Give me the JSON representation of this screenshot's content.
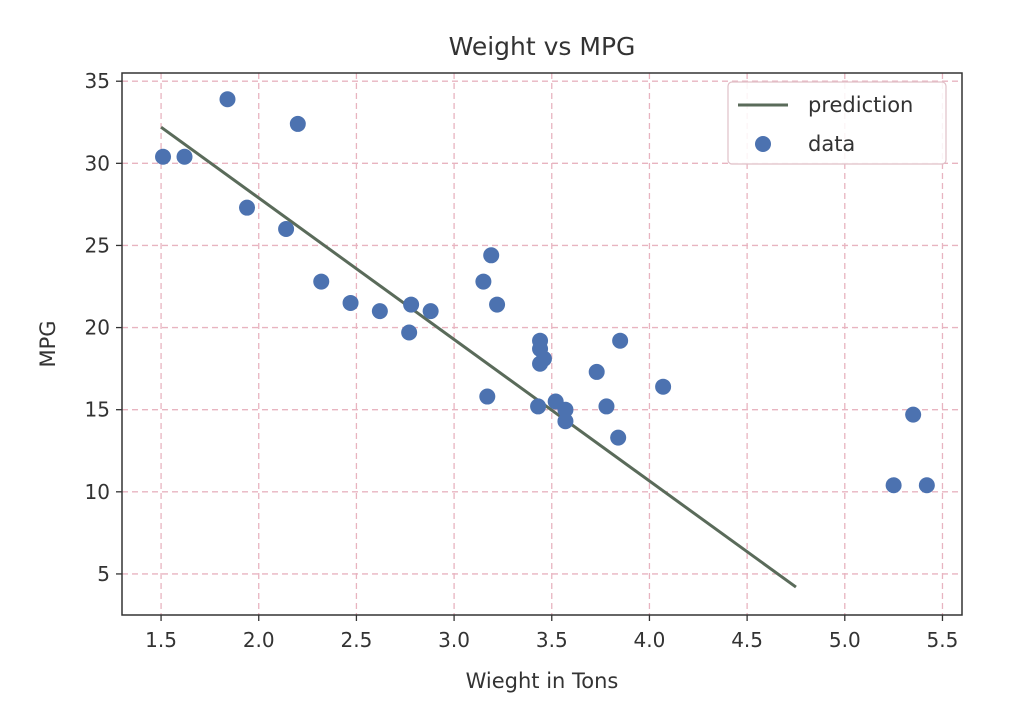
{
  "chart_data": {
    "type": "scatter",
    "title": "Weight vs MPG",
    "xlabel": "Wieght in Tons",
    "ylabel": "MPG",
    "xlim": [
      1.3,
      5.6
    ],
    "ylim": [
      2.5,
      35.5
    ],
    "xticks": [
      1.5,
      2.0,
      2.5,
      3.0,
      3.5,
      4.0,
      4.5,
      5.0,
      5.5
    ],
    "xtick_labels": [
      "1.5",
      "2.0",
      "2.5",
      "3.0",
      "3.5",
      "4.0",
      "4.5",
      "5.0",
      "5.5"
    ],
    "yticks": [
      5,
      10,
      15,
      20,
      25,
      30,
      35
    ],
    "ytick_labels": [
      "5",
      "10",
      "15",
      "20",
      "25",
      "30",
      "35"
    ],
    "grid": true,
    "legend_position": "top-right",
    "series": [
      {
        "name": "prediction",
        "kind": "line",
        "color": "#5a6b5a",
        "x": [
          1.5,
          4.75
        ],
        "y": [
          32.2,
          4.2
        ]
      },
      {
        "name": "data",
        "kind": "scatter",
        "color": "#4c72b0",
        "x": [
          1.51,
          1.62,
          1.84,
          1.94,
          2.14,
          2.2,
          2.32,
          2.47,
          2.62,
          2.77,
          2.78,
          2.88,
          3.15,
          3.17,
          3.19,
          3.22,
          3.43,
          3.44,
          3.44,
          3.44,
          3.46,
          3.52,
          3.57,
          3.57,
          3.73,
          3.78,
          3.84,
          3.85,
          4.07,
          5.25,
          5.35,
          5.42
        ],
        "y": [
          30.4,
          30.4,
          33.9,
          27.3,
          26.0,
          32.4,
          22.8,
          21.5,
          21.0,
          19.7,
          21.4,
          21.0,
          22.8,
          15.8,
          24.4,
          21.4,
          15.2,
          19.2,
          18.7,
          17.8,
          18.1,
          15.5,
          15.0,
          14.3,
          17.3,
          15.2,
          13.3,
          19.2,
          16.4,
          10.4,
          14.7,
          10.4
        ]
      }
    ]
  },
  "colors": {
    "grid": "#e8b4c0",
    "axes": "#333333",
    "background": "#ffffff"
  }
}
